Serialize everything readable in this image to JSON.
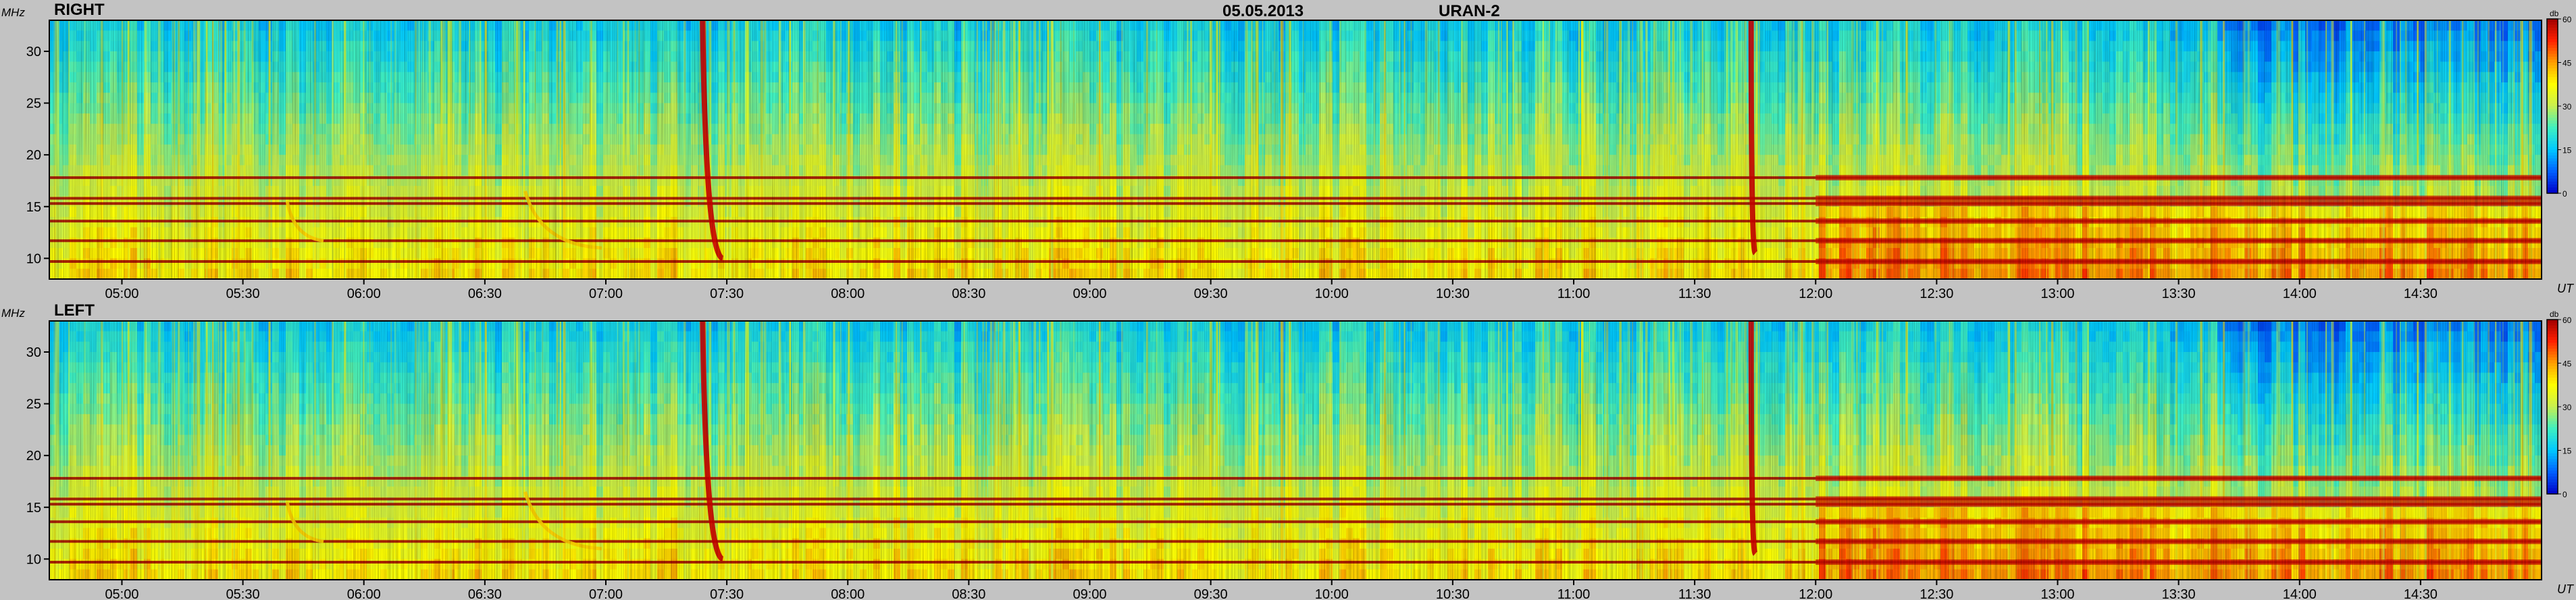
{
  "header": {
    "date": "05.05.2013",
    "instrument": "URAN-2"
  },
  "colors": {
    "background": "#c3c3c3",
    "colormap": [
      "#0000c8",
      "#0060ff",
      "#00c8ff",
      "#40f0c0",
      "#c8f050",
      "#ffff00",
      "#ffa000",
      "#ff2000",
      "#a00000"
    ]
  },
  "chart_data": [
    {
      "type": "heatmap",
      "title": "RIGHT",
      "ylabel": "MHz",
      "xlabel": "UT",
      "ylim": [
        8,
        33
      ],
      "yticks": [
        10,
        15,
        20,
        25,
        30
      ],
      "xlim": [
        "04:42",
        "15:00"
      ],
      "xticks": [
        "05:00",
        "05:30",
        "06:00",
        "06:30",
        "07:00",
        "07:30",
        "08:00",
        "08:30",
        "09:00",
        "09:30",
        "10:00",
        "10:30",
        "11:00",
        "11:30",
        "12:00",
        "12:30",
        "13:00",
        "13:30",
        "14:00",
        "14:30"
      ],
      "colorbar": {
        "label": "db",
        "range": [
          0,
          60
        ],
        "ticks": [
          0,
          15,
          30,
          45,
          60
        ]
      },
      "interference_bands_mhz": [
        9.7,
        11.7,
        13.6,
        15.3,
        15.8,
        17.8
      ],
      "bursts": [
        {
          "start": "05:41",
          "end": "05:49",
          "f_high_mhz": 15.5,
          "f_low_mhz": 11.7
        },
        {
          "start": "06:40",
          "end": "06:58",
          "f_high_mhz": 16.5,
          "f_low_mhz": 11.0
        },
        {
          "start": "07:24",
          "end": "07:28",
          "f_high_mhz": 33,
          "f_low_mhz": 10.0
        },
        {
          "start": "11:44",
          "end": "11:44",
          "f_high_mhz": 33,
          "f_low_mhz": 10.5
        }
      ],
      "strong_interference_period": [
        "12:00",
        "15:00"
      ]
    },
    {
      "type": "heatmap",
      "title": "LEFT",
      "ylabel": "MHz",
      "xlabel": "UT",
      "ylim": [
        8,
        33
      ],
      "yticks": [
        10,
        15,
        20,
        25,
        30
      ],
      "xlim": [
        "04:42",
        "15:00"
      ],
      "xticks": [
        "05:00",
        "05:30",
        "06:00",
        "06:30",
        "07:00",
        "07:30",
        "08:00",
        "08:30",
        "09:00",
        "09:30",
        "10:00",
        "10:30",
        "11:00",
        "11:30",
        "12:00",
        "12:30",
        "13:00",
        "13:30",
        "14:00",
        "14:30"
      ],
      "colorbar": {
        "label": "db",
        "range": [
          0,
          60
        ],
        "ticks": [
          0,
          15,
          30,
          45,
          60
        ]
      },
      "interference_bands_mhz": [
        9.7,
        11.7,
        13.6,
        15.3,
        15.8,
        17.8
      ],
      "bursts": [
        {
          "start": "05:41",
          "end": "05:49",
          "f_high_mhz": 15.5,
          "f_low_mhz": 11.7
        },
        {
          "start": "06:40",
          "end": "06:58",
          "f_high_mhz": 16.5,
          "f_low_mhz": 11.0
        },
        {
          "start": "07:24",
          "end": "07:28",
          "f_high_mhz": 33,
          "f_low_mhz": 10.0
        },
        {
          "start": "11:44",
          "end": "11:44",
          "f_high_mhz": 33,
          "f_low_mhz": 10.5
        }
      ],
      "strong_interference_period": [
        "12:00",
        "15:00"
      ]
    }
  ]
}
